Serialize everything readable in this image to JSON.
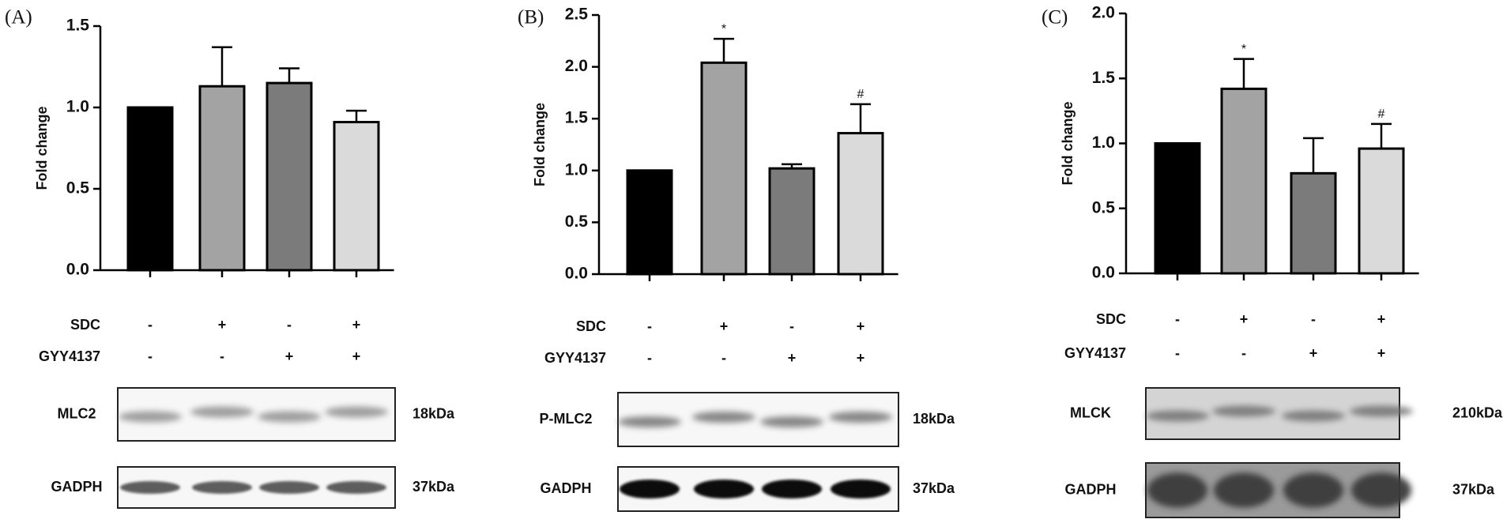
{
  "chart_data": [
    {
      "type": "bar",
      "panel_label": "(A)",
      "y_label": "Fold change",
      "values": [
        1.0,
        1.13,
        1.15,
        0.91
      ],
      "errors": [
        0,
        0.24,
        0.09,
        0.07
      ],
      "annotations": [
        null,
        null,
        null,
        null
      ],
      "colors": [
        "#000000",
        "#a3a3a3",
        "#7b7b7b",
        "#dadada"
      ],
      "ylim": [
        0,
        1.5
      ],
      "yticks": [
        {
          "value": 0,
          "label": "0.0"
        },
        0.5,
        {
          "value": 1,
          "label": "1.0"
        },
        1.5
      ],
      "conditions": [
        {
          "name": "SDC",
          "values": [
            "-",
            "+",
            "-",
            "+"
          ]
        },
        {
          "name": "GYY4137",
          "values": [
            "-",
            "-",
            "+",
            "+"
          ]
        }
      ],
      "blots": [
        {
          "protein": "MLC2",
          "size": "18kDa"
        },
        {
          "protein": "GADPH",
          "size": "37kDa"
        }
      ]
    },
    {
      "type": "bar",
      "panel_label": "(B)",
      "y_label": "Fold change",
      "values": [
        1.0,
        2.04,
        1.02,
        1.36
      ],
      "errors": [
        0,
        0.23,
        0.04,
        0.28
      ],
      "annotations": [
        null,
        "*",
        null,
        "#"
      ],
      "colors": [
        "#000000",
        "#a3a3a3",
        "#7b7b7b",
        "#dadada"
      ],
      "ylim": [
        0,
        2.5
      ],
      "yticks": [
        {
          "value": 0,
          "label": "0.0"
        },
        0.5,
        {
          "value": 1,
          "label": "1.0"
        },
        1.5,
        {
          "value": 2,
          "label": "2.0"
        },
        2.5
      ],
      "conditions": [
        {
          "name": "SDC",
          "values": [
            "-",
            "+",
            "-",
            "+"
          ]
        },
        {
          "name": "GYY4137",
          "values": [
            "-",
            "-",
            "+",
            "+"
          ]
        }
      ],
      "blots": [
        {
          "protein": "P-MLC2",
          "size": "18kDa"
        },
        {
          "protein": "GADPH",
          "size": "37kDa"
        }
      ]
    },
    {
      "type": "bar",
      "panel_label": "(C)",
      "y_label": "Fold change",
      "values": [
        1.0,
        1.42,
        0.77,
        0.96
      ],
      "errors": [
        0,
        0.23,
        0.27,
        0.19
      ],
      "annotations": [
        null,
        "*",
        null,
        "#"
      ],
      "colors": [
        "#000000",
        "#a3a3a3",
        "#7b7b7b",
        "#dadada"
      ],
      "ylim": [
        0,
        2
      ],
      "yticks": [
        {
          "value": 0,
          "label": "0.0"
        },
        0.5,
        {
          "value": 1,
          "label": "1.0"
        },
        1.5,
        {
          "value": 2,
          "label": "2.0"
        }
      ],
      "conditions": [
        {
          "name": "SDC",
          "values": [
            "-",
            "+",
            "-",
            "+"
          ]
        },
        {
          "name": "GYY4137",
          "values": [
            "-",
            "-",
            "+",
            "+"
          ]
        }
      ],
      "blots": [
        {
          "protein": "MLCK",
          "size": "210kDa"
        },
        {
          "protein": "GADPH",
          "size": "37kDa"
        }
      ]
    }
  ]
}
